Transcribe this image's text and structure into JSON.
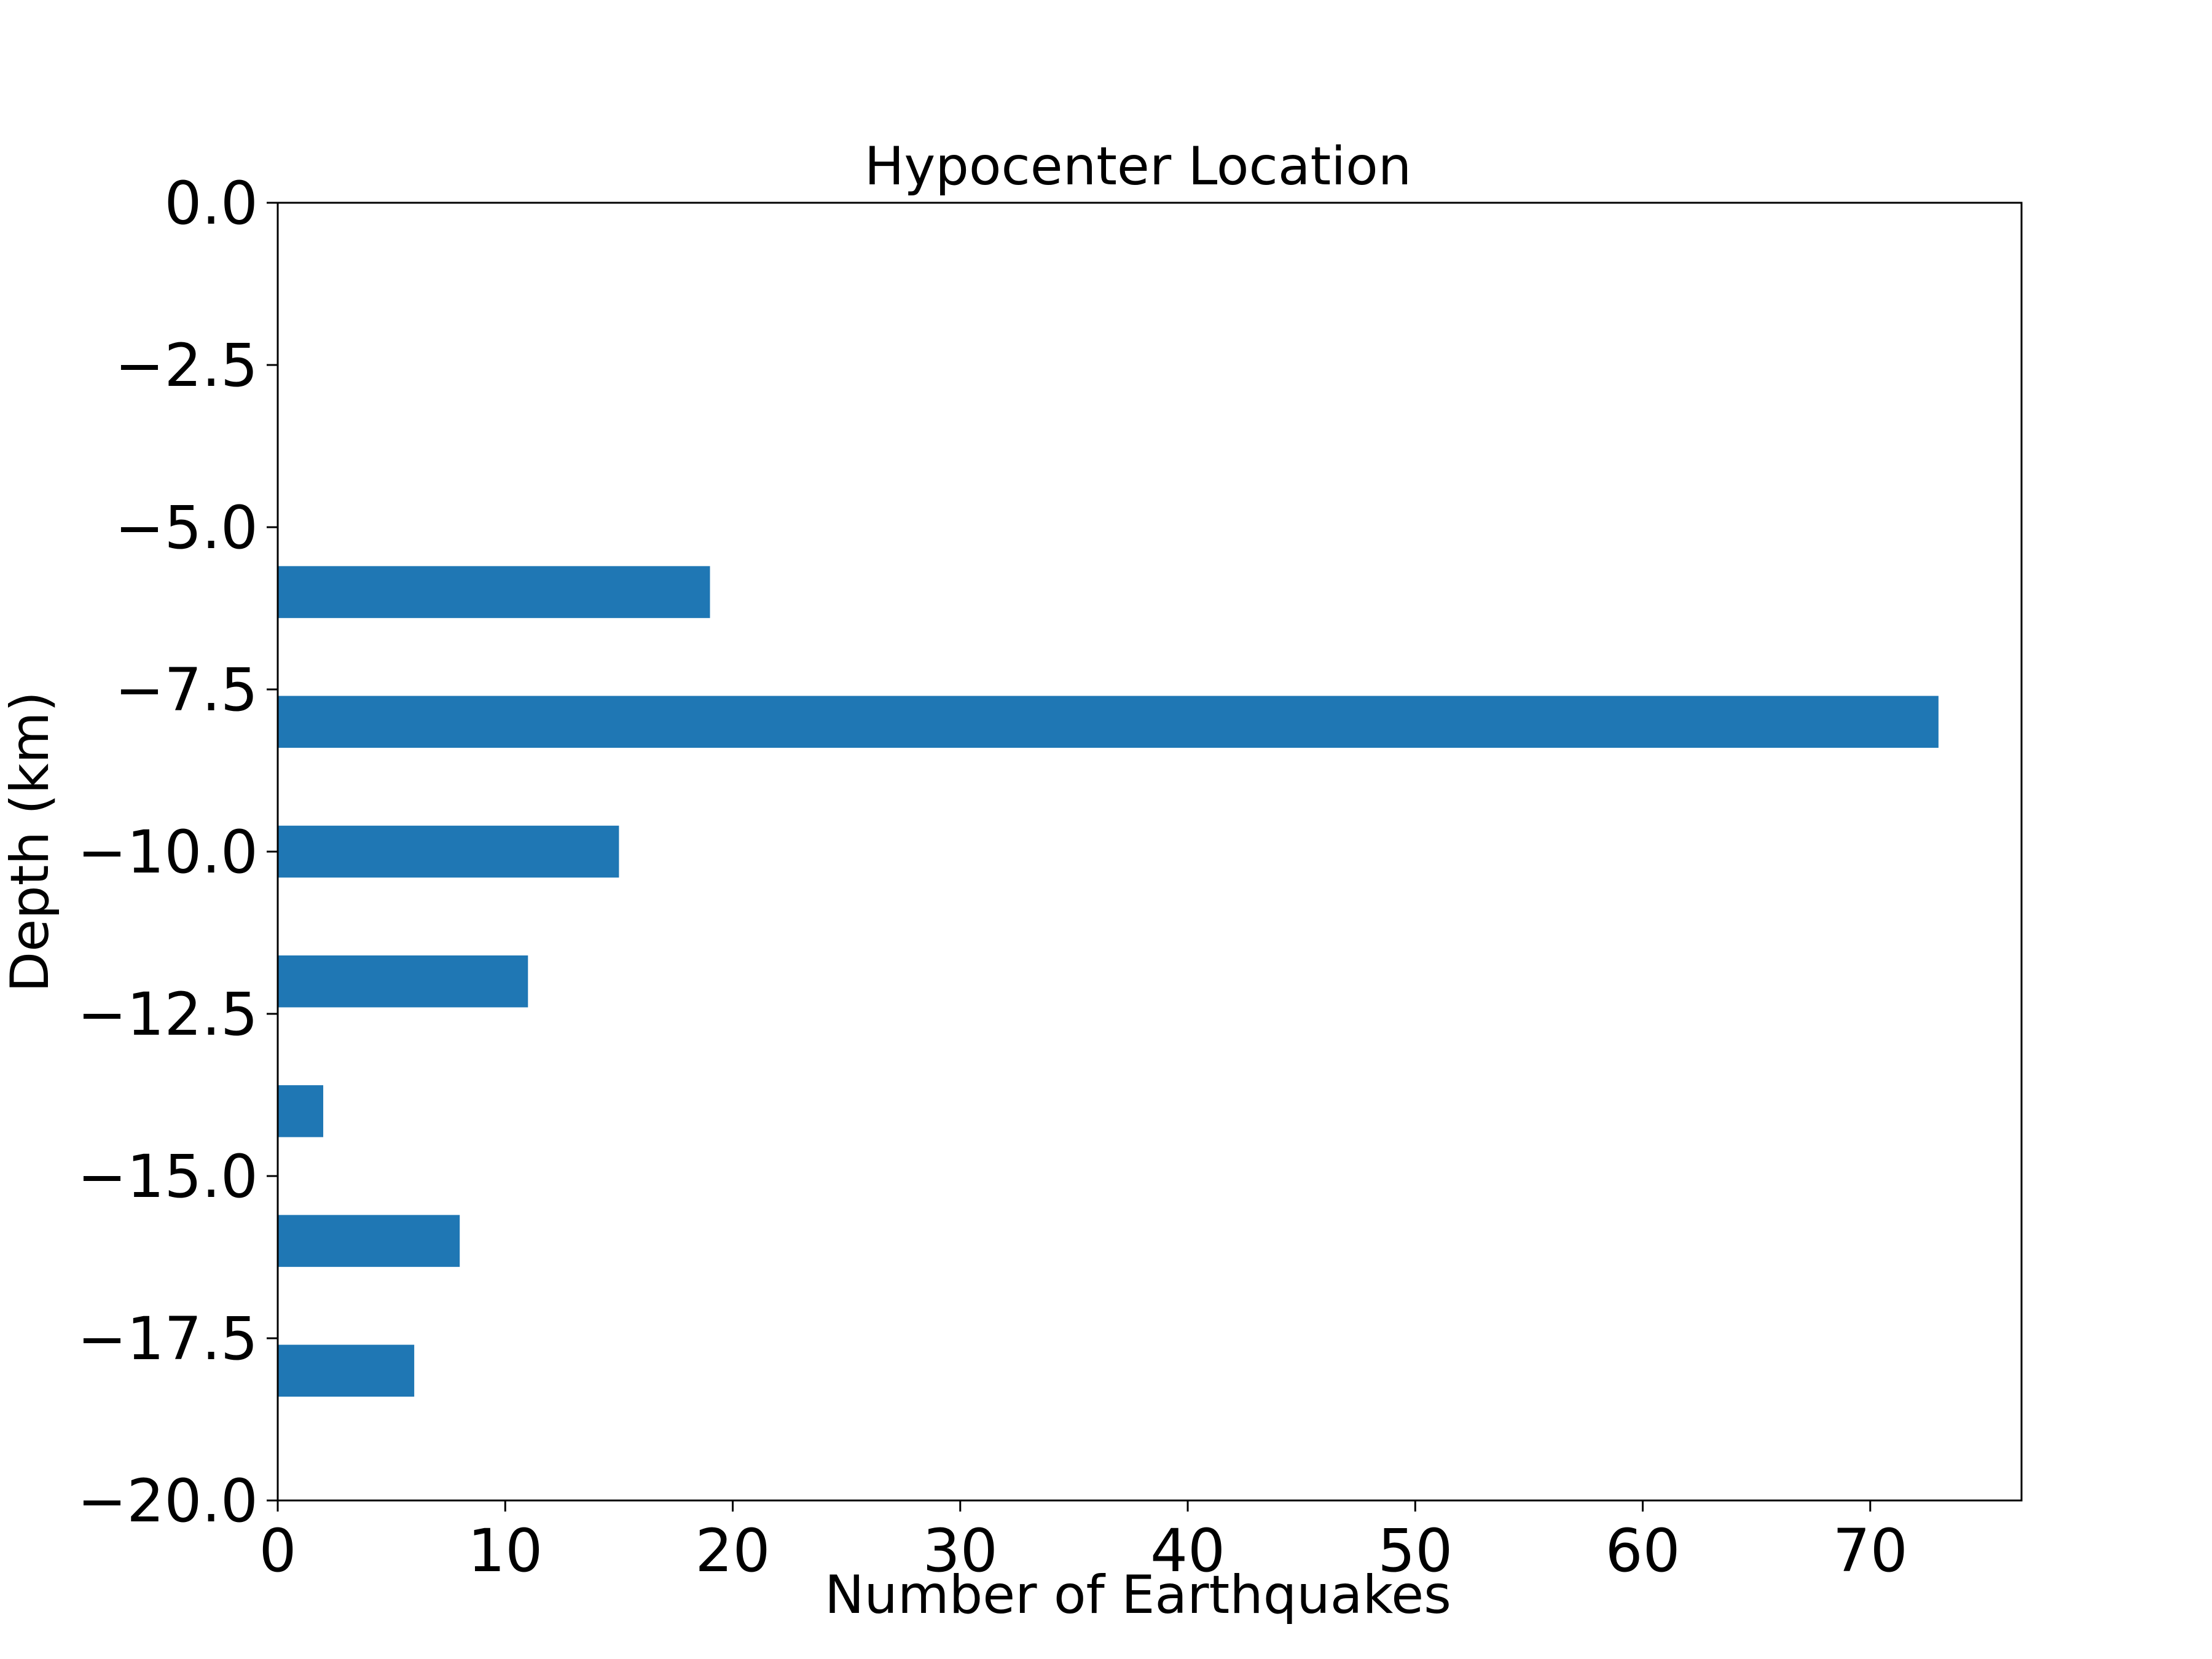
{
  "chart_data": {
    "type": "bar",
    "orientation": "horizontal",
    "title": "Hypocenter Location",
    "xlabel": "Number of Earthquakes",
    "ylabel": "Depth (km)",
    "xlim": [
      0,
      76.65
    ],
    "ylim": [
      -20.0,
      0.0
    ],
    "xticks": [
      0,
      10,
      20,
      30,
      40,
      50,
      60,
      70
    ],
    "xtick_labels": [
      "0",
      "10",
      "20",
      "30",
      "40",
      "50",
      "60",
      "70"
    ],
    "yticks": [
      0.0,
      -2.5,
      -5.0,
      -7.5,
      -10.0,
      -12.5,
      -15.0,
      -17.5,
      -20.0
    ],
    "ytick_labels": [
      "0.0",
      "−2.5",
      "−5.0",
      "−7.5",
      "−10.0",
      "−12.5",
      "−15.0",
      "−17.5",
      "−20.0"
    ],
    "grid": false,
    "bar_height": 0.8,
    "color": "#1f77b4",
    "bars": [
      {
        "depth": -6.0,
        "count": 19
      },
      {
        "depth": -8.0,
        "count": 73
      },
      {
        "depth": -10.0,
        "count": 15
      },
      {
        "depth": -12.0,
        "count": 11
      },
      {
        "depth": -14.0,
        "count": 2
      },
      {
        "depth": -16.0,
        "count": 8
      },
      {
        "depth": -18.0,
        "count": 6
      }
    ]
  }
}
